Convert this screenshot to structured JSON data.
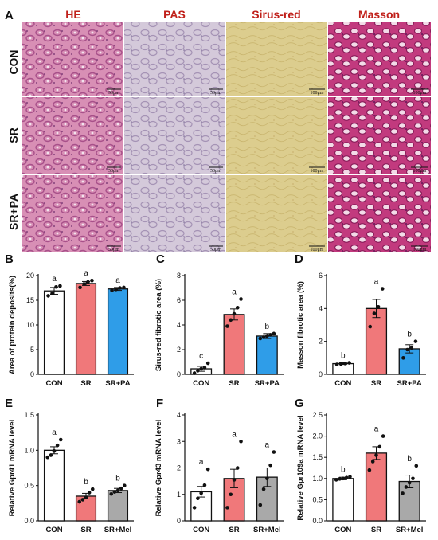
{
  "figure": {
    "panel_letters": [
      "A",
      "B",
      "C",
      "D",
      "E",
      "F",
      "G"
    ],
    "histology": {
      "columns": [
        "HE",
        "PAS",
        "Sirus-red",
        "Masson"
      ],
      "rows": [
        "CON",
        "SR",
        "SR+PA"
      ],
      "scale_bars": [
        "50μm",
        "50μm",
        "100μm",
        "100μm"
      ]
    },
    "colors": {
      "header_red": "#c0201a",
      "con_bar": "#ffffff",
      "sr_bar": "#f0787a",
      "sr_pa_bar": "#2f9de8",
      "sr_mel_bar": "#a9a9a9",
      "he_tissue": "#d88fb5",
      "pas_tissue": "#cfc3d5",
      "sirius_tissue": "#d8c98a",
      "masson_tissue": "#c0307a"
    }
  },
  "chart_data": [
    {
      "panel": "B",
      "type": "bar",
      "categories": [
        "CON",
        "SR",
        "SR+PA"
      ],
      "values": [
        16.9,
        18.4,
        17.3
      ],
      "errors": [
        0.7,
        0.4,
        0.3
      ],
      "points": [
        [
          15.9,
          16.4,
          17.7,
          17.9
        ],
        [
          17.6,
          18.3,
          18.7,
          19.0
        ],
        [
          17.0,
          17.2,
          17.5,
          17.6
        ]
      ],
      "letters": [
        "a",
        "a",
        "a"
      ],
      "ylabel": "Area of protein deposits(%)",
      "ylim": [
        0,
        20
      ],
      "yticks": [
        0,
        5,
        10,
        15,
        20
      ],
      "bar_colors": [
        "#ffffff",
        "#f0787a",
        "#2f9de8"
      ]
    },
    {
      "panel": "C",
      "type": "bar",
      "categories": [
        "CON",
        "SR",
        "SR+PA"
      ],
      "values": [
        0.45,
        4.85,
        3.1
      ],
      "errors": [
        0.2,
        0.45,
        0.2
      ],
      "points": [
        [
          0.1,
          0.3,
          0.45,
          0.55,
          0.9
        ],
        [
          3.9,
          4.4,
          4.9,
          5.4,
          6.1
        ],
        [
          2.9,
          3.0,
          3.1,
          3.2,
          3.3
        ]
      ],
      "letters": [
        "c",
        "a",
        "b"
      ],
      "ylabel": "Sirus-red fibrotic area (%)",
      "ylim": [
        0,
        8
      ],
      "yticks": [
        0,
        2,
        4,
        6,
        8
      ],
      "bar_colors": [
        "#ffffff",
        "#f0787a",
        "#2f9de8"
      ]
    },
    {
      "panel": "D",
      "type": "bar",
      "categories": [
        "CON",
        "SR",
        "SR+PA"
      ],
      "values": [
        0.65,
        4.0,
        1.55
      ],
      "errors": [
        0.05,
        0.55,
        0.25
      ],
      "points": [
        [
          0.6,
          0.63,
          0.66,
          0.7
        ],
        [
          2.9,
          3.7,
          4.1,
          5.2
        ],
        [
          1.0,
          1.5,
          1.6,
          2.0
        ]
      ],
      "letters": [
        "b",
        "a",
        "b"
      ],
      "ylabel": "Masson fibrotic area (%)",
      "ylim": [
        0,
        6
      ],
      "yticks": [
        0,
        2,
        4,
        6
      ],
      "bar_colors": [
        "#ffffff",
        "#f0787a",
        "#2f9de8"
      ]
    },
    {
      "panel": "E",
      "type": "bar",
      "categories": [
        "CON",
        "SR",
        "SR+Mel"
      ],
      "values": [
        1.0,
        0.35,
        0.43
      ],
      "errors": [
        0.05,
        0.04,
        0.03
      ],
      "points": [
        [
          0.9,
          0.93,
          0.99,
          1.07,
          1.15
        ],
        [
          0.27,
          0.3,
          0.33,
          0.4,
          0.45
        ],
        [
          0.38,
          0.41,
          0.43,
          0.46,
          0.5
        ]
      ],
      "letters": [
        "a",
        "b",
        "b"
      ],
      "ylabel": "Relative Gpr41 mRNA  level",
      "ylim": [
        0,
        1.5
      ],
      "yticks": [
        0.0,
        0.5,
        1.0,
        1.5
      ],
      "bar_colors": [
        "#ffffff",
        "#f0787a",
        "#a9a9a9"
      ]
    },
    {
      "panel": "F",
      "type": "bar",
      "categories": [
        "CON",
        "SR",
        "SR+Mel"
      ],
      "values": [
        1.1,
        1.6,
        1.65
      ],
      "errors": [
        0.2,
        0.35,
        0.35
      ],
      "points": [
        [
          0.5,
          0.85,
          1.05,
          1.35,
          1.95
        ],
        [
          0.5,
          1.0,
          1.55,
          2.0,
          3.0
        ],
        [
          0.6,
          1.2,
          1.6,
          2.1,
          2.6
        ]
      ],
      "letters": [
        "a",
        "a",
        "a"
      ],
      "ylabel": "Relative Gpr43 mRNA  level",
      "ylim": [
        0,
        4
      ],
      "yticks": [
        0,
        1,
        2,
        3,
        4
      ],
      "bar_colors": [
        "#ffffff",
        "#f0787a",
        "#a9a9a9"
      ]
    },
    {
      "panel": "G",
      "type": "bar",
      "categories": [
        "CON",
        "SR",
        "SR+Mel"
      ],
      "values": [
        1.0,
        1.6,
        0.93
      ],
      "errors": [
        0.03,
        0.15,
        0.15
      ],
      "points": [
        [
          0.97,
          0.99,
          1.0,
          1.02,
          1.04
        ],
        [
          1.2,
          1.4,
          1.55,
          1.75,
          2.0
        ],
        [
          0.65,
          0.8,
          0.9,
          1.0,
          1.3
        ]
      ],
      "letters": [
        "b",
        "a",
        "b"
      ],
      "ylabel": "Relative Gpr109a mRNA  level",
      "ylim": [
        0,
        2.5
      ],
      "yticks": [
        0.0,
        0.5,
        1.0,
        1.5,
        2.0,
        2.5
      ],
      "bar_colors": [
        "#ffffff",
        "#f0787a",
        "#a9a9a9"
      ]
    }
  ]
}
